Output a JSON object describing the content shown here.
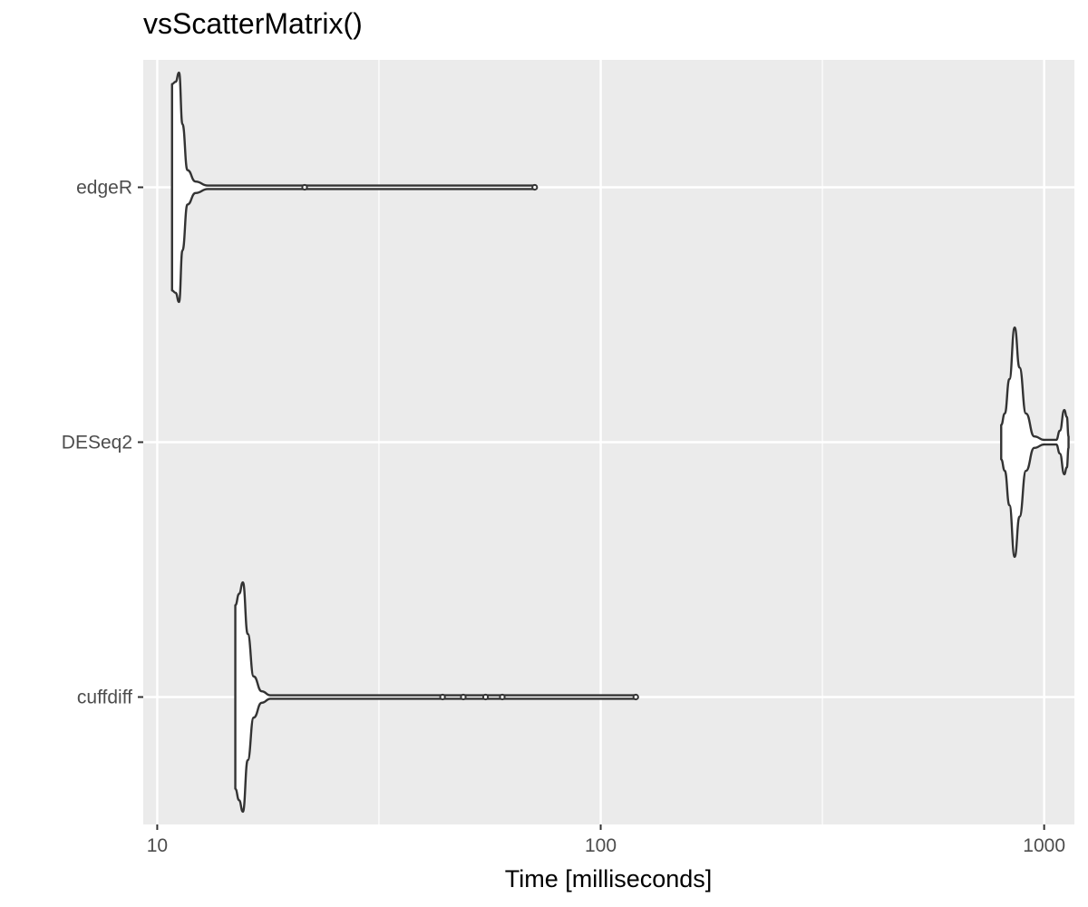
{
  "chart_data": {
    "type": "violin",
    "title": "vsScatterMatrix()",
    "xlabel": "Time [milliseconds]",
    "ylabel": "",
    "x_scale": "log10",
    "xlim": [
      9.3,
      1170
    ],
    "x_ticks": [
      10,
      100,
      1000
    ],
    "x_tick_labels": [
      "10",
      "100",
      "1000"
    ],
    "categories": [
      "edgeR",
      "DESeq2",
      "cuffdiff"
    ],
    "grid": true,
    "legend": "none",
    "colors": {
      "panel": "#ebebeb",
      "grid": "#ffffff",
      "outline": "#333333",
      "fill": "#ffffff",
      "tick_label": "#4d4d4d"
    },
    "series": [
      {
        "name": "edgeR",
        "range": [
          10.8,
          71
        ],
        "outliers": [
          21.5,
          71
        ],
        "profile": [
          [
            10.8,
            0.9
          ],
          [
            11.0,
            0.92
          ],
          [
            11.2,
            1.0
          ],
          [
            11.4,
            0.55
          ],
          [
            11.7,
            0.15
          ],
          [
            12.2,
            0.05
          ],
          [
            13,
            0.015
          ],
          [
            20,
            0.015
          ],
          [
            71,
            0.015
          ]
        ]
      },
      {
        "name": "DESeq2",
        "range": [
          800,
          1135
        ],
        "outliers": [],
        "profile": [
          [
            800,
            0.15
          ],
          [
            815,
            0.25
          ],
          [
            835,
            0.55
          ],
          [
            858,
            1.0
          ],
          [
            880,
            0.65
          ],
          [
            910,
            0.25
          ],
          [
            950,
            0.05
          ],
          [
            1000,
            0.02
          ],
          [
            1065,
            0.02
          ],
          [
            1085,
            0.1
          ],
          [
            1110,
            0.28
          ],
          [
            1125,
            0.22
          ],
          [
            1135,
            0.05
          ]
        ]
      },
      {
        "name": "cuffdiff",
        "range": [
          15.0,
          120
        ],
        "outliers": [
          44,
          49,
          55,
          60,
          120
        ],
        "profile": [
          [
            15.0,
            0.8
          ],
          [
            15.3,
            0.9
          ],
          [
            15.6,
            1.0
          ],
          [
            16.0,
            0.55
          ],
          [
            16.5,
            0.18
          ],
          [
            17.2,
            0.05
          ],
          [
            18,
            0.015
          ],
          [
            30,
            0.015
          ],
          [
            120,
            0.015
          ]
        ]
      }
    ]
  }
}
